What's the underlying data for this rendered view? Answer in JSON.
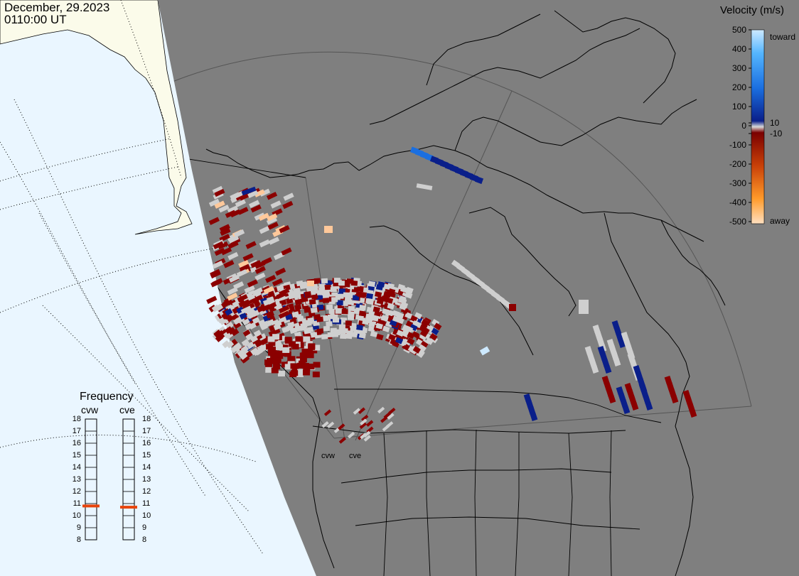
{
  "header": {
    "date": "December, 29.2023",
    "time": "0110:00 UT"
  },
  "colorbar": {
    "title": "Velocity (m/s)",
    "tick_labels": [
      "500",
      "400",
      "300",
      "200",
      "100",
      "10",
      "0",
      "-10",
      "-100",
      "-200",
      "-300",
      "-400",
      "-500"
    ],
    "toward_label": "toward",
    "away_label": "away",
    "range": [
      -500,
      500
    ],
    "ground_scatter_color": "#cfcfcf"
  },
  "frequency_panel": {
    "title": "Frequency",
    "radars": [
      {
        "name": "cvw",
        "frequency_mhz": 10.8
      },
      {
        "name": "cve",
        "frequency_mhz": 10.7
      }
    ],
    "ticks": [
      "18",
      "17",
      "16",
      "15",
      "14",
      "13",
      "12",
      "11",
      "10",
      "9",
      "8"
    ],
    "range": [
      8,
      18
    ],
    "marker_color": "#e8440a"
  },
  "map": {
    "radar_labels": [
      "cvw",
      "cve"
    ],
    "ocean_color": "#eaf6ff",
    "night_color": "#7f7f7f",
    "day_land_color": "#fbfbea"
  }
}
